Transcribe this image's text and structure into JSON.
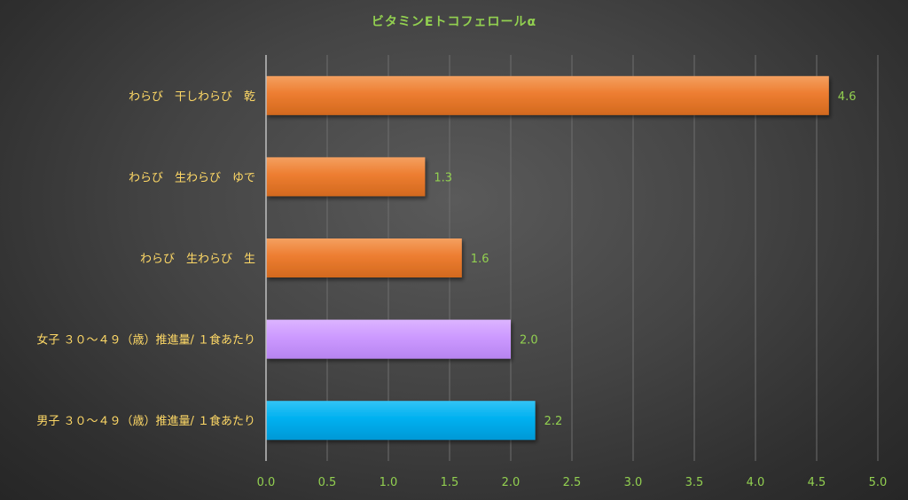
{
  "colors": {
    "title": "#92d050",
    "category_label": "#ffd966",
    "tick_label": "#92d050",
    "data_label": "#92d050",
    "gridline": "#6e6e6e",
    "axis_line": "#bfbfbf"
  },
  "chart_data": {
    "type": "bar",
    "orientation": "horizontal",
    "title": "ビタミンEトコフェロールα",
    "categories": [
      "わらび　干しわらび　乾",
      "わらび　生わらび　ゆで",
      "わらび　生わらび　生",
      "女子 ３０～４９（歳）推進量/ １食あたり",
      "男子 ３０～４９（歳）推進量/ １食あたり"
    ],
    "values": [
      4.6,
      1.3,
      1.6,
      2.0,
      2.2
    ],
    "value_labels": [
      "4.6",
      "1.3",
      "1.6",
      "2.0",
      "2.2"
    ],
    "bar_colors": [
      "#ed7d31",
      "#ed7d31",
      "#ed7d31",
      "#cc99ff",
      "#00b0f0"
    ],
    "xlim": [
      0,
      5
    ],
    "xticks": [
      "0.0",
      "0.5",
      "1.0",
      "1.5",
      "2.0",
      "2.5",
      "3.0",
      "3.5",
      "4.0",
      "4.5",
      "5.0"
    ],
    "xlabel": "",
    "ylabel": "",
    "grid": true,
    "legend": "none"
  }
}
